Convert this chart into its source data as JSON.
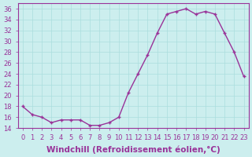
{
  "hours": [
    0,
    1,
    2,
    3,
    4,
    5,
    6,
    7,
    8,
    9,
    10,
    11,
    12,
    13,
    14,
    15,
    16,
    17,
    18,
    19,
    20,
    21,
    22,
    23
  ],
  "values": [
    18,
    16.5,
    16,
    15,
    15.5,
    15.5,
    15.5,
    14.5,
    14.5,
    15,
    16,
    20.5,
    24,
    27.5,
    31.5,
    35,
    35.5,
    36,
    35,
    35.5,
    35,
    31.5,
    28,
    23.5
  ],
  "line_color": "#993399",
  "marker": "+",
  "bg_color": "#cceeee",
  "grid_color": "#aadddd",
  "xlabel": "Windchill (Refroidissement éolien,°C)",
  "ylim": [
    14,
    37
  ],
  "xlim_min": -0.5,
  "xlim_max": 23.5,
  "yticks": [
    14,
    16,
    18,
    20,
    22,
    24,
    26,
    28,
    30,
    32,
    34,
    36
  ],
  "xticks": [
    0,
    1,
    2,
    3,
    4,
    5,
    6,
    7,
    8,
    9,
    10,
    11,
    12,
    13,
    14,
    15,
    16,
    17,
    18,
    19,
    20,
    21,
    22,
    23
  ],
  "tick_color": "#993399",
  "tick_fontsize": 6.0,
  "xlabel_fontsize": 7.5,
  "spine_color": "#993399",
  "linewidth": 1.0,
  "markersize": 3.5,
  "markeredgewidth": 1.0
}
